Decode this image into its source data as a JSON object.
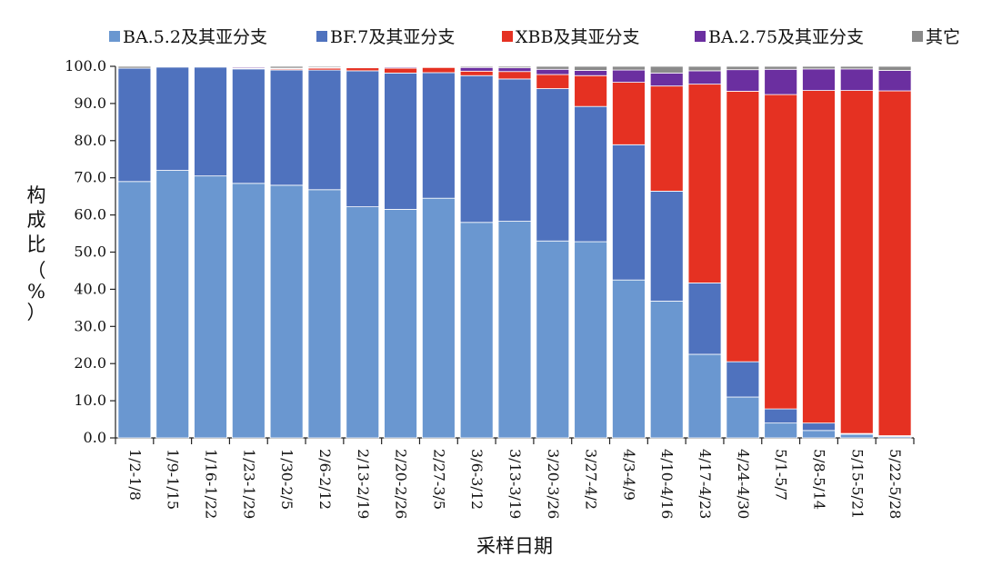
{
  "chart_data": {
    "type": "bar",
    "stacked": true,
    "title": "",
    "xlabel": "采样日期",
    "ylabel_chars": [
      "构",
      "成",
      "比",
      "（",
      "%",
      "）"
    ],
    "ylim": [
      0,
      100
    ],
    "ytick_labels": [
      "0.0",
      "10.0",
      "20.0",
      "30.0",
      "40.0",
      "50.0",
      "60.0",
      "70.0",
      "80.0",
      "90.0",
      "100.0"
    ],
    "legend_position": "top",
    "categories": [
      "1/2-1/8",
      "1/9-1/15",
      "1/16-1/22",
      "1/23-1/29",
      "1/30-2/5",
      "2/6-2/12",
      "2/13-2/19",
      "2/20-2/26",
      "2/27-3/5",
      "3/6-3/12",
      "3/13-3/19",
      "3/20-3/26",
      "3/27-4/2",
      "4/3-4/9",
      "4/10-4/16",
      "4/17-4/23",
      "4/24-4/30",
      "5/1-5/7",
      "5/8-5/14",
      "5/15-5/21",
      "5/22-5/28"
    ],
    "series": [
      {
        "name": "BA.5.2及其亚分支",
        "color": "#6a97d0",
        "values": [
          69.0,
          72.0,
          70.5,
          68.5,
          68.0,
          66.8,
          62.2,
          61.5,
          64.5,
          58.0,
          58.3,
          53.0,
          52.8,
          42.5,
          36.8,
          22.5,
          11.0,
          4.0,
          2.0,
          1.0,
          0.4
        ]
      },
      {
        "name": "BF.7及其亚分支",
        "color": "#4f72be",
        "values": [
          30.5,
          27.8,
          29.3,
          30.8,
          31.0,
          32.2,
          36.6,
          36.7,
          33.8,
          39.5,
          38.3,
          41.0,
          36.4,
          36.4,
          29.6,
          19.2,
          9.5,
          3.8,
          2.0,
          0.2,
          0.2
        ]
      },
      {
        "name": "XBB及其亚分支",
        "color": "#e53122",
        "values": [
          0.0,
          0.0,
          0.0,
          0.2,
          0.3,
          0.5,
          0.8,
          1.3,
          1.4,
          1.2,
          2.0,
          3.8,
          8.3,
          16.8,
          28.3,
          53.5,
          72.8,
          84.6,
          89.5,
          92.3,
          92.8
        ]
      },
      {
        "name": "BA.2.75及其亚分支",
        "color": "#6b2fa0",
        "values": [
          0.0,
          0.0,
          0.0,
          0.3,
          0.2,
          0.2,
          0.2,
          0.3,
          0.2,
          1.0,
          1.0,
          1.4,
          1.4,
          3.3,
          3.5,
          3.6,
          5.8,
          6.8,
          5.8,
          5.8,
          5.5
        ]
      },
      {
        "name": "其它",
        "color": "#8a8a8a",
        "values": [
          0.5,
          0.2,
          0.2,
          0.2,
          0.5,
          0.3,
          0.2,
          0.2,
          0.1,
          0.3,
          0.4,
          0.8,
          1.1,
          1.0,
          1.8,
          1.2,
          0.9,
          0.8,
          0.7,
          0.7,
          1.1
        ]
      }
    ]
  }
}
